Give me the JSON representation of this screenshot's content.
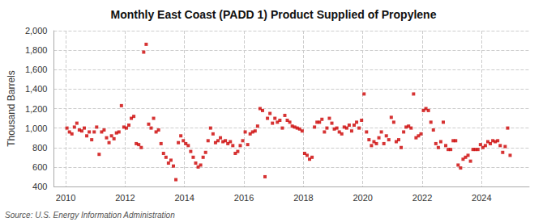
{
  "chart_data": {
    "type": "scatter",
    "title": "Monthly East Coast (PADD 1) Product Supplied of Propylene",
    "ylabel": "Thousand Barrels",
    "annotations": [
      "Source: U.S. Energy Information Administration"
    ],
    "color": "#cc0000",
    "marker": "square",
    "grid": true,
    "xlim": [
      2009.6,
      2025.6
    ],
    "xticks": [
      2010,
      2012,
      2014,
      2016,
      2018,
      2020,
      2022,
      2024
    ],
    "ylim": [
      400,
      2000
    ],
    "yticks": [
      400,
      600,
      800,
      {
        "value": 1000,
        "label": "1,000"
      },
      {
        "value": 1200,
        "label": "1,200"
      },
      {
        "value": 1400,
        "label": "1,400"
      },
      {
        "value": 1600,
        "label": "1,600"
      },
      {
        "value": 1800,
        "label": "1,800"
      },
      {
        "value": 2000,
        "label": "2,000"
      }
    ],
    "x": [
      2010.0416666666667,
      2010.125,
      2010.2083333333333,
      2010.2916666666667,
      2010.375,
      2010.4583333333333,
      2010.5416666666667,
      2010.625,
      2010.7083333333333,
      2010.7916666666667,
      2010.875,
      2010.9583333333333,
      2011.0416666666667,
      2011.125,
      2011.2083333333333,
      2011.2916666666667,
      2011.375,
      2011.4583333333333,
      2011.5416666666667,
      2011.625,
      2011.7083333333333,
      2011.7916666666667,
      2011.875,
      2011.9583333333333,
      2012.0416666666667,
      2012.125,
      2012.2083333333333,
      2012.2916666666667,
      2012.375,
      2012.4583333333333,
      2012.5416666666667,
      2012.625,
      2012.7083333333333,
      2012.7916666666667,
      2012.875,
      2012.9583333333333,
      2013.0416666666667,
      2013.125,
      2013.2083333333333,
      2013.2916666666667,
      2013.375,
      2013.4583333333333,
      2013.5416666666667,
      2013.625,
      2013.7083333333333,
      2013.7916666666667,
      2013.875,
      2013.9583333333333,
      2014.0416666666667,
      2014.125,
      2014.2083333333333,
      2014.2916666666667,
      2014.375,
      2014.4583333333333,
      2014.5416666666667,
      2014.625,
      2014.7083333333333,
      2014.7916666666667,
      2014.875,
      2014.9583333333333,
      2015.0416666666667,
      2015.125,
      2015.2083333333333,
      2015.2916666666667,
      2015.375,
      2015.4583333333333,
      2015.5416666666667,
      2015.625,
      2015.7083333333333,
      2015.7916666666667,
      2015.875,
      2015.9583333333333,
      2016.0416666666667,
      2016.125,
      2016.2083333333333,
      2016.2916666666667,
      2016.375,
      2016.4583333333333,
      2016.5416666666667,
      2016.625,
      2016.7083333333333,
      2016.7916666666667,
      2016.875,
      2016.9583333333333,
      2017.0416666666667,
      2017.125,
      2017.2083333333333,
      2017.2916666666667,
      2017.375,
      2017.4583333333333,
      2017.5416666666667,
      2017.625,
      2017.7083333333333,
      2017.7916666666667,
      2017.875,
      2017.9583333333333,
      2018.0416666666667,
      2018.125,
      2018.2083333333333,
      2018.2916666666667,
      2018.375,
      2018.4583333333333,
      2018.5416666666667,
      2018.625,
      2018.7083333333333,
      2018.7916666666667,
      2018.875,
      2018.9583333333333,
      2019.0416666666667,
      2019.125,
      2019.2083333333333,
      2019.2916666666667,
      2019.375,
      2019.4583333333333,
      2019.5416666666667,
      2019.625,
      2019.7083333333333,
      2019.7916666666667,
      2019.875,
      2019.9583333333333,
      2020.0416666666667,
      2020.125,
      2020.2083333333333,
      2020.2916666666667,
      2020.375,
      2020.4583333333333,
      2020.5416666666667,
      2020.625,
      2020.7083333333333,
      2020.7916666666667,
      2020.875,
      2020.9583333333333,
      2021.0416666666667,
      2021.125,
      2021.2083333333333,
      2021.2916666666667,
      2021.375,
      2021.4583333333333,
      2021.5416666666667,
      2021.625,
      2021.7083333333333,
      2021.7916666666667,
      2021.875,
      2021.9583333333333,
      2022.0416666666667,
      2022.125,
      2022.2083333333333,
      2022.2916666666667,
      2022.375,
      2022.4583333333333,
      2022.5416666666667,
      2022.625,
      2022.7083333333333,
      2022.7916666666667,
      2022.875,
      2022.9583333333333,
      2023.0416666666667,
      2023.125,
      2023.2083333333333,
      2023.2916666666667,
      2023.375,
      2023.4583333333333,
      2023.5416666666667,
      2023.625,
      2023.7083333333333,
      2023.7916666666667,
      2023.875,
      2023.9583333333333,
      2024.0416666666667,
      2024.125,
      2024.2083333333333,
      2024.2916666666667,
      2024.375,
      2024.4583333333333,
      2024.5416666666667,
      2024.625,
      2024.7083333333333,
      2024.7916666666667,
      2024.875,
      2024.9583333333333
    ],
    "values": [
      1000,
      960,
      940,
      1010,
      1050,
      980,
      970,
      1000,
      920,
      960,
      880,
      960,
      1010,
      730,
      960,
      980,
      900,
      850,
      920,
      890,
      950,
      960,
      1230,
      1010,
      1000,
      1030,
      1100,
      1120,
      840,
      830,
      800,
      1780,
      1860,
      1040,
      1000,
      1100,
      960,
      980,
      840,
      740,
      700,
      640,
      670,
      610,
      470,
      850,
      920,
      870,
      840,
      820,
      760,
      700,
      640,
      600,
      620,
      700,
      750,
      870,
      1000,
      940,
      850,
      870,
      900,
      860,
      870,
      840,
      860,
      820,
      740,
      760,
      820,
      870,
      960,
      830,
      940,
      960,
      970,
      1020,
      1200,
      1180,
      500,
      1100,
      1150,
      1050,
      1100,
      1060,
      1080,
      1000,
      1130,
      1080,
      1060,
      1020,
      1010,
      1000,
      990,
      970,
      740,
      720,
      680,
      700,
      1010,
      1060,
      1060,
      1090,
      960,
      1000,
      1100,
      1050,
      990,
      1000,
      960,
      940,
      1010,
      1000,
      1030,
      970,
      1030,
      1060,
      1000,
      1080,
      1350,
      960,
      880,
      820,
      860,
      840,
      900,
      960,
      840,
      920,
      880,
      1110,
      1060,
      860,
      880,
      800,
      960,
      1010,
      1020,
      1000,
      1350,
      900,
      920,
      940,
      1180,
      1200,
      1180,
      1060,
      980,
      840,
      800,
      860,
      1060,
      820,
      780,
      780,
      870,
      870,
      620,
      590,
      680,
      700,
      720,
      660,
      780,
      780,
      780,
      830,
      800,
      820,
      860,
      840,
      870,
      860,
      870,
      820,
      750,
      810,
      1000,
      720
    ]
  }
}
